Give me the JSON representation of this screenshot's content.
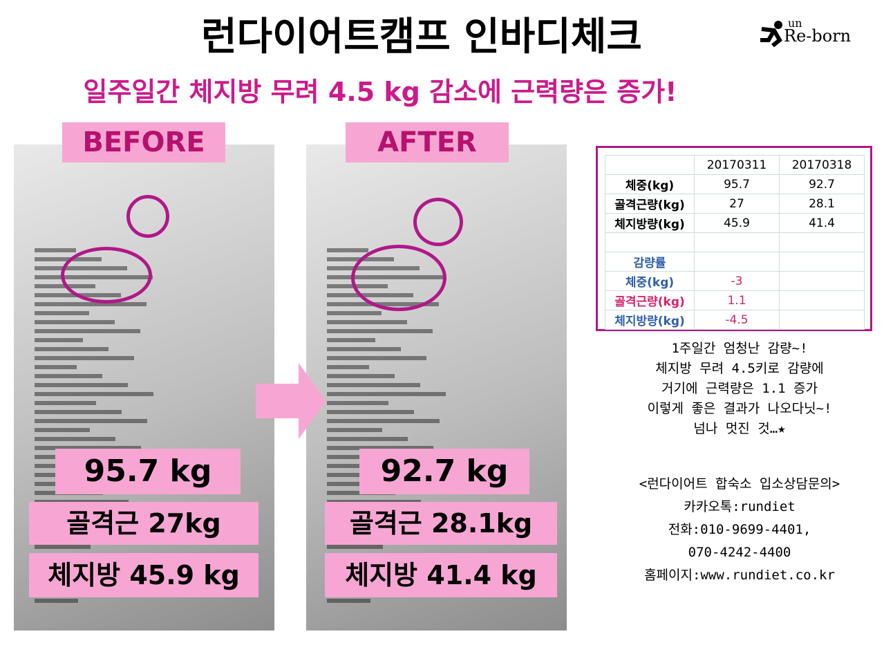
{
  "header": {
    "title": "런다이어트캠프 인바디체크",
    "subtitle": "일주일간 체지방 무려 4.5 kg 감소에 근력량은 증가!",
    "logo": {
      "top": "un",
      "main": "Re-born"
    }
  },
  "before": {
    "label": "BEFORE",
    "weight": "95.7 kg",
    "muscle": "골격근 27kg",
    "fat": "체지방 45.9 kg"
  },
  "after": {
    "label": "AFTER",
    "weight": "92.7 kg",
    "muscle": "골격근 28.1kg",
    "fat": "체지방 41.4 kg"
  },
  "table": {
    "columns": [
      "20170311",
      "20170318"
    ],
    "rows": [
      {
        "label": "체중(kg)",
        "values": [
          "95.7",
          "92.7"
        ]
      },
      {
        "label": "골격근량(kg)",
        "values": [
          "27",
          "28.1"
        ]
      },
      {
        "label": "체지방량(kg)",
        "values": [
          "45.9",
          "41.4"
        ]
      }
    ],
    "change_title": "감량률",
    "change_rows": [
      {
        "label": "체중(kg)",
        "value": "-3"
      },
      {
        "label": "골격근량(kg)",
        "value": "1.1"
      },
      {
        "label": "체지방량(kg)",
        "value": "-4.5"
      }
    ]
  },
  "message": [
    "1주일간 엄청난 감량~!",
    "체지방 무려 4.5키로 감량에",
    "거기에 근력량은 1.1 증가",
    "이렇게 좋은 결과가 나오다닛~!",
    "넘나 멋진 것…★"
  ],
  "contact": [
    "<런다이어트 합숙소 입소상담문의>",
    "카카오톡:rundiet",
    "전화:010-9699-4401,",
    "070-4242-4400",
    "홈페이지:www.rundiet.co.kr"
  ]
}
